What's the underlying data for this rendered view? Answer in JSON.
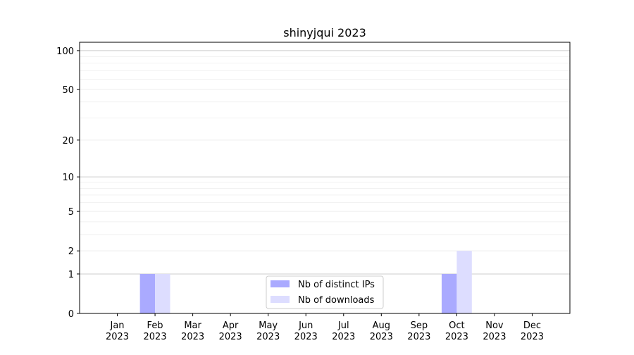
{
  "chart_data": {
    "type": "bar",
    "title": "shinyjqui 2023",
    "xlabel": "",
    "ylabel": "",
    "y_scale": "log10(1+y)",
    "ylim": [
      0,
      116
    ],
    "y_ticks": [
      0,
      1,
      2,
      5,
      10,
      20,
      50,
      100
    ],
    "grid": true,
    "legend_placement": "lower-center",
    "categories": [
      "Jan\n2023",
      "Feb\n2023",
      "Mar\n2023",
      "Apr\n2023",
      "May\n2023",
      "Jun\n2023",
      "Jul\n2023",
      "Aug\n2023",
      "Sep\n2023",
      "Oct\n2023",
      "Nov\n2023",
      "Dec\n2023"
    ],
    "series": [
      {
        "name": "Nb of distinct IPs",
        "color": "#aaaaff",
        "values": [
          0,
          1,
          0,
          0,
          0,
          0,
          0,
          0,
          0,
          1,
          0,
          0
        ]
      },
      {
        "name": "Nb of downloads",
        "color": "#ddddff",
        "values": [
          0,
          1,
          0,
          0,
          0,
          0,
          0,
          0,
          0,
          2,
          0,
          0
        ]
      }
    ]
  }
}
